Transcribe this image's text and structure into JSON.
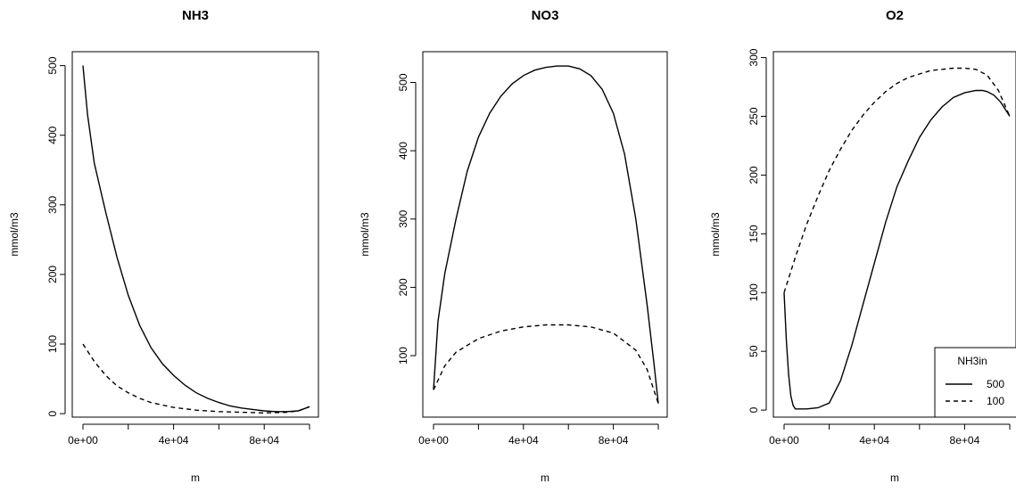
{
  "chart_data": [
    {
      "type": "line",
      "title": "NH3",
      "xlabel": "m",
      "ylabel": "mmol/m3",
      "xlim": [
        0,
        100000
      ],
      "ylim": [
        0,
        500
      ],
      "xticks": [
        "0e+00",
        "4e+04",
        "8e+04"
      ],
      "xtick_values": [
        0,
        40000,
        80000
      ],
      "yticks": [
        "0",
        "100",
        "200",
        "300",
        "400",
        "500"
      ],
      "ytick_values": [
        0,
        100,
        200,
        300,
        400,
        500
      ],
      "series": [
        {
          "name": "500",
          "style": "solid",
          "x": [
            0,
            2000,
            5000,
            10000,
            15000,
            20000,
            25000,
            30000,
            35000,
            40000,
            45000,
            50000,
            55000,
            60000,
            65000,
            70000,
            75000,
            80000,
            85000,
            90000,
            95000,
            100000
          ],
          "y": [
            500,
            430,
            360,
            290,
            225,
            170,
            127,
            95,
            72,
            55,
            41,
            30,
            22,
            16,
            11,
            8,
            6,
            4,
            3,
            3,
            4,
            10
          ]
        },
        {
          "name": "100",
          "style": "dashed",
          "x": [
            0,
            5000,
            10000,
            15000,
            20000,
            25000,
            30000,
            40000,
            50000,
            60000,
            70000,
            80000,
            90000,
            95000,
            100000
          ],
          "y": [
            100,
            75,
            55,
            40,
            30,
            22,
            16,
            9,
            5,
            3,
            2,
            1,
            2,
            4,
            10
          ]
        }
      ]
    },
    {
      "type": "line",
      "title": "NO3",
      "xlabel": "m",
      "ylabel": "mmol/m3",
      "xlim": [
        0,
        100000
      ],
      "ylim": [
        0,
        540
      ],
      "xticks": [
        "0e+00",
        "4e+04",
        "8e+04"
      ],
      "xtick_values": [
        0,
        40000,
        80000
      ],
      "yticks": [
        "100",
        "200",
        "300",
        "400",
        "500"
      ],
      "ytick_values": [
        100,
        200,
        300,
        400,
        500
      ],
      "series": [
        {
          "name": "500",
          "style": "solid",
          "x": [
            0,
            2000,
            5000,
            10000,
            15000,
            20000,
            25000,
            30000,
            35000,
            40000,
            45000,
            50000,
            55000,
            60000,
            65000,
            70000,
            75000,
            80000,
            85000,
            90000,
            95000,
            98000,
            100000
          ],
          "y": [
            50,
            150,
            220,
            300,
            370,
            420,
            455,
            480,
            498,
            510,
            518,
            522,
            524,
            524,
            520,
            510,
            490,
            455,
            395,
            300,
            175,
            90,
            30
          ],
          "note": ""
        },
        {
          "name": "100",
          "style": "dashed",
          "x": [
            0,
            5000,
            10000,
            20000,
            30000,
            40000,
            50000,
            60000,
            70000,
            80000,
            90000,
            95000,
            100000
          ],
          "y": [
            50,
            85,
            105,
            125,
            136,
            142,
            145,
            145,
            142,
            133,
            108,
            80,
            30
          ]
        }
      ]
    },
    {
      "type": "line",
      "title": "O2",
      "xlabel": "m",
      "ylabel": "mmol/m3",
      "xlim": [
        0,
        100000
      ],
      "ylim": [
        0,
        300
      ],
      "xticks": [
        "0e+00",
        "4e+04",
        "8e+04"
      ],
      "xtick_values": [
        0,
        40000,
        80000
      ],
      "yticks": [
        "0",
        "50",
        "100",
        "150",
        "200",
        "250",
        "300"
      ],
      "ytick_values": [
        0,
        50,
        100,
        150,
        200,
        250,
        300
      ],
      "legend": {
        "title": "NH3in",
        "placement": "bottom-right",
        "entries": [
          "500",
          "100"
        ]
      },
      "series": [
        {
          "name": "500",
          "style": "solid",
          "x": [
            0,
            1000,
            2000,
            3000,
            4000,
            5000,
            7000,
            10000,
            15000,
            20000,
            25000,
            30000,
            35000,
            40000,
            45000,
            50000,
            55000,
            60000,
            65000,
            70000,
            75000,
            80000,
            85000,
            88000,
            90000,
            93000,
            96000,
            100000
          ],
          "y": [
            100,
            60,
            30,
            12,
            4,
            1,
            1,
            1,
            2,
            6,
            25,
            55,
            90,
            125,
            160,
            190,
            212,
            232,
            247,
            258,
            266,
            270,
            272,
            272,
            271,
            268,
            262,
            250
          ]
        },
        {
          "name": "100",
          "style": "dashed",
          "x": [
            0,
            5000,
            10000,
            15000,
            20000,
            25000,
            30000,
            35000,
            40000,
            45000,
            50000,
            55000,
            60000,
            65000,
            70000,
            75000,
            80000,
            85000,
            90000,
            95000,
            100000
          ],
          "y": [
            100,
            130,
            158,
            182,
            204,
            222,
            238,
            251,
            262,
            271,
            278,
            283,
            286,
            289,
            290,
            291,
            291,
            290,
            285,
            272,
            250
          ]
        }
      ]
    }
  ]
}
